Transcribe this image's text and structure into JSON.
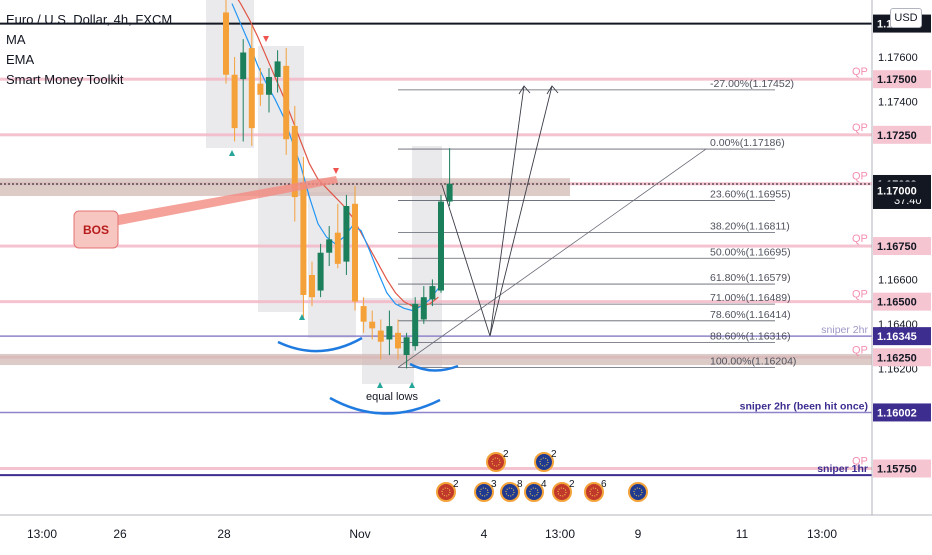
{
  "header": {
    "symbol_line": "Euro / U.S. Dollar, 4h, FXCM",
    "indicators": [
      "MA",
      "EMA",
      "Smart Money Toolkit"
    ],
    "currency": "USD"
  },
  "colors": {
    "up": "#1b7f5b",
    "down": "#f4a13a",
    "ma": "#e05545",
    "ema": "#2196f3",
    "zone": "#d1b9b5",
    "pink": "#f3b9c7",
    "purple": "#3c2d8f",
    "blue_arc": "#1f7be0"
  },
  "chart_data": {
    "type": "candlestick",
    "ylim": [
      1.1555,
      1.1782
    ],
    "x_ticks": [
      "13:00",
      "26",
      "28",
      "Nov",
      "4",
      "13:00",
      "9",
      "11",
      "13:00"
    ],
    "y_ticks": [
      "1.17600",
      "1.17400",
      "1.17250",
      "1.17000",
      "1.16750",
      "1.16600",
      "1.16500",
      "1.16400",
      "1.16250",
      "1.16200",
      "1.16000",
      "1.15750"
    ],
    "price_badges": [
      {
        "label": "1.17750",
        "value": 1.1775,
        "style": "black"
      },
      {
        "label": "1.17500",
        "value": 1.175,
        "style": "pink"
      },
      {
        "label": "1.17250",
        "value": 1.1725,
        "style": "pink"
      },
      {
        "label": "1.17029",
        "value": 1.17029,
        "style": "black",
        "sub": "37:40"
      },
      {
        "label": "1.17000",
        "value": 1.17,
        "style": "black"
      },
      {
        "label": "1.16750",
        "value": 1.1675,
        "style": "pink"
      },
      {
        "label": "1.16500",
        "value": 1.165,
        "style": "pink"
      },
      {
        "label": "1.16345",
        "value": 1.16345,
        "style": "purple"
      },
      {
        "label": "1.16250",
        "value": 1.1625,
        "style": "pink"
      },
      {
        "label": "1.16002",
        "value": 1.16002,
        "style": "purple"
      },
      {
        "label": "1.15750",
        "value": 1.1575,
        "style": "pink"
      }
    ],
    "horizontal_levels": [
      {
        "value": 1.1775,
        "kind": "black"
      },
      {
        "value": 1.175,
        "kind": "pink",
        "label": "QP"
      },
      {
        "value": 1.1725,
        "kind": "pink",
        "label": "QP"
      },
      {
        "value": 1.1703,
        "kind": "pink",
        "label": "QP"
      },
      {
        "value": 1.1675,
        "kind": "pink",
        "label": "QP"
      },
      {
        "value": 1.165,
        "kind": "pink",
        "label": "QP"
      },
      {
        "value": 1.16345,
        "kind": "purple",
        "label": "sniper 2hr"
      },
      {
        "value": 1.1625,
        "kind": "pink",
        "label": "QP"
      },
      {
        "value": 1.16002,
        "kind": "purple",
        "label": "sniper 2hr (been hit once)"
      },
      {
        "value": 1.1575,
        "kind": "pink",
        "label": "QP"
      },
      {
        "value": 1.1572,
        "kind": "purple",
        "label": "sniper 1hr"
      }
    ],
    "fib_levels": [
      {
        "label": "-27.00%(1.17452)",
        "value": 1.17452
      },
      {
        "label": "0.00%(1.17186)",
        "value": 1.17186
      },
      {
        "label": "23.60%(1.16955)",
        "value": 1.16955
      },
      {
        "label": "38.20%(1.16811)",
        "value": 1.16811
      },
      {
        "label": "50.00%(1.16695)",
        "value": 1.16695
      },
      {
        "label": "61.80%(1.16579)",
        "value": 1.16579
      },
      {
        "label": "71.00%(1.16489)",
        "value": 1.16489
      },
      {
        "label": "78.60%(1.16414)",
        "value": 1.16414
      },
      {
        "label": "88.60%(1.16316)",
        "value": 1.16316
      },
      {
        "label": "100.00%(1.16204)",
        "value": 1.16204
      }
    ],
    "annotations": [
      "BOS",
      "equal lows"
    ],
    "event_counts": [
      "2",
      "2",
      "2",
      "3",
      "8",
      "4",
      "2",
      "6"
    ],
    "candles": [
      {
        "o": 1.178,
        "h": 1.179,
        "l": 1.1748,
        "c": 1.1752
      },
      {
        "o": 1.1752,
        "h": 1.176,
        "l": 1.1722,
        "c": 1.1728
      },
      {
        "o": 1.175,
        "h": 1.1768,
        "l": 1.1722,
        "c": 1.1762
      },
      {
        "o": 1.1764,
        "h": 1.1774,
        "l": 1.172,
        "c": 1.1728
      },
      {
        "o": 1.1748,
        "h": 1.1755,
        "l": 1.1738,
        "c": 1.1743
      },
      {
        "o": 1.1743,
        "h": 1.1755,
        "l": 1.1735,
        "c": 1.1751
      },
      {
        "o": 1.1751,
        "h": 1.1763,
        "l": 1.1744,
        "c": 1.1758
      },
      {
        "o": 1.1756,
        "h": 1.1764,
        "l": 1.1716,
        "c": 1.1723
      },
      {
        "o": 1.1729,
        "h": 1.1738,
        "l": 1.1686,
        "c": 1.1697
      },
      {
        "o": 1.1703,
        "h": 1.1715,
        "l": 1.1642,
        "c": 1.1653
      },
      {
        "o": 1.1662,
        "h": 1.1668,
        "l": 1.1648,
        "c": 1.1652
      },
      {
        "o": 1.1655,
        "h": 1.1676,
        "l": 1.1652,
        "c": 1.1672
      },
      {
        "o": 1.1672,
        "h": 1.1684,
        "l": 1.1666,
        "c": 1.1678
      },
      {
        "o": 1.1681,
        "h": 1.1694,
        "l": 1.1665,
        "c": 1.1667
      },
      {
        "o": 1.1668,
        "h": 1.1698,
        "l": 1.1662,
        "c": 1.1693
      },
      {
        "o": 1.1694,
        "h": 1.1702,
        "l": 1.1646,
        "c": 1.165
      },
      {
        "o": 1.1648,
        "h": 1.1652,
        "l": 1.1636,
        "c": 1.1641
      },
      {
        "o": 1.1641,
        "h": 1.1646,
        "l": 1.1633,
        "c": 1.1638
      },
      {
        "o": 1.1637,
        "h": 1.1642,
        "l": 1.1624,
        "c": 1.1632
      },
      {
        "o": 1.1633,
        "h": 1.1646,
        "l": 1.1626,
        "c": 1.1639
      },
      {
        "o": 1.1636,
        "h": 1.1642,
        "l": 1.1624,
        "c": 1.1629
      },
      {
        "o": 1.1626,
        "h": 1.1636,
        "l": 1.162,
        "c": 1.1634
      },
      {
        "o": 1.163,
        "h": 1.1652,
        "l": 1.1628,
        "c": 1.1649
      },
      {
        "o": 1.1642,
        "h": 1.1657,
        "l": 1.164,
        "c": 1.1652
      },
      {
        "o": 1.1651,
        "h": 1.166,
        "l": 1.1648,
        "c": 1.1657
      },
      {
        "o": 1.1655,
        "h": 1.1698,
        "l": 1.1654,
        "c": 1.1695
      },
      {
        "o": 1.1695,
        "h": 1.1719,
        "l": 1.1693,
        "c": 1.1703
      }
    ],
    "ma_values": [
      1.179,
      1.1784,
      1.1777,
      1.1769,
      1.176,
      1.1751,
      1.1742,
      1.1732,
      1.1722,
      1.1712,
      1.1705,
      1.1701,
      1.1697,
      1.1693,
      1.1688,
      1.1681,
      1.1674,
      1.1667,
      1.166,
      1.1654,
      1.165,
      1.1648,
      1.1648,
      1.1649,
      1.1652
    ],
    "ema_values": [
      1.1784,
      1.1775,
      1.1766,
      1.1756,
      1.1748,
      1.1741,
      1.1733,
      1.1722,
      1.1711,
      1.1697,
      1.1685,
      1.1679,
      1.1676,
      1.1679,
      1.1684,
      1.1682,
      1.1673,
      1.1663,
      1.1654,
      1.1649,
      1.1647,
      1.1646,
      1.1648,
      1.1651,
      1.1656
    ]
  }
}
